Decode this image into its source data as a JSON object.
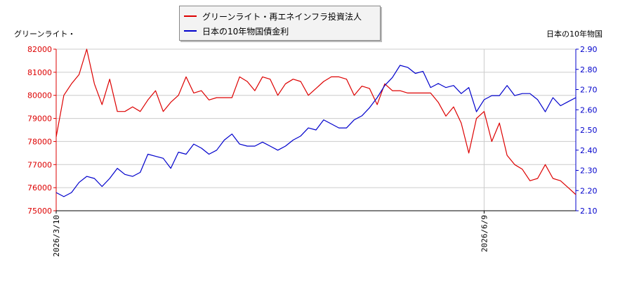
{
  "chart_data": {
    "type": "line",
    "left_axis_label": "グリーンライト・",
    "right_axis_label": "日本の10年物国",
    "x_ticks": [
      "2026/3/10",
      "2026/6/9"
    ],
    "left_ylim": [
      75000,
      82000
    ],
    "left_ticks": [
      "75000",
      "76000",
      "77000",
      "78000",
      "79000",
      "80000",
      "81000",
      "82000"
    ],
    "right_ylim": [
      2.1,
      2.9
    ],
    "right_ticks": [
      "2.10",
      "2.20",
      "2.30",
      "2.40",
      "2.50",
      "2.60",
      "2.70",
      "2.80",
      "2.90"
    ],
    "grid": true,
    "legend_position": "top-center",
    "series": [
      {
        "name": "グリーンライト・再エネインフラ投資法人",
        "axis": "left",
        "color": "#dd0000",
        "values": [
          78200,
          80000,
          80500,
          80900,
          82000,
          80500,
          79600,
          80700,
          79300,
          79300,
          79500,
          79300,
          79800,
          80200,
          79300,
          79700,
          80000,
          80800,
          80100,
          80200,
          79800,
          79900,
          79900,
          79900,
          80800,
          80600,
          80200,
          80800,
          80700,
          80000,
          80500,
          80700,
          80600,
          80000,
          80300,
          80600,
          80800,
          80800,
          80700,
          80000,
          80400,
          80300,
          79600,
          80500,
          80200,
          80200,
          80100,
          80100,
          80100,
          80100,
          79700,
          79100,
          79500,
          78800,
          77500,
          79000,
          79300,
          78000,
          78800,
          77400,
          77000,
          76800,
          76300,
          76400,
          77000,
          76400,
          76300,
          76000,
          75700
        ]
      },
      {
        "name": "日本の10年物国債金利",
        "axis": "right",
        "color": "#0000cc",
        "values": [
          2.19,
          2.17,
          2.19,
          2.24,
          2.27,
          2.26,
          2.22,
          2.26,
          2.31,
          2.28,
          2.27,
          2.29,
          2.38,
          2.37,
          2.36,
          2.31,
          2.39,
          2.38,
          2.43,
          2.41,
          2.38,
          2.4,
          2.45,
          2.48,
          2.43,
          2.42,
          2.42,
          2.44,
          2.42,
          2.4,
          2.42,
          2.45,
          2.47,
          2.51,
          2.5,
          2.55,
          2.53,
          2.51,
          2.51,
          2.55,
          2.57,
          2.61,
          2.66,
          2.72,
          2.76,
          2.82,
          2.81,
          2.78,
          2.79,
          2.71,
          2.73,
          2.71,
          2.72,
          2.68,
          2.71,
          2.59,
          2.65,
          2.67,
          2.67,
          2.72,
          2.67,
          2.68,
          2.68,
          2.65,
          2.59,
          2.66,
          2.62,
          2.64,
          2.66
        ]
      }
    ]
  }
}
